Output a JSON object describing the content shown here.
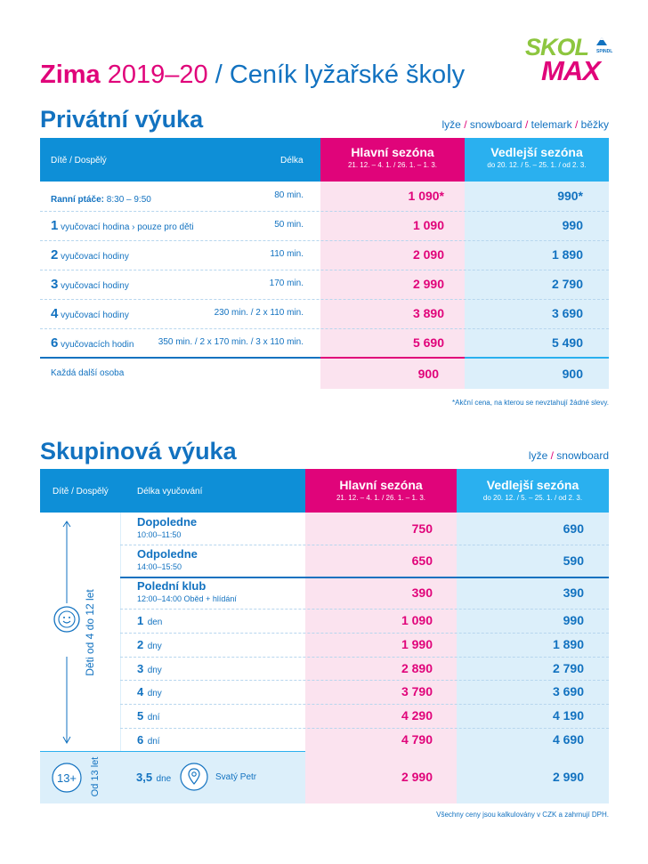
{
  "header": {
    "season_bold": "Zima",
    "season_years": "2019–20",
    "season_rest": "/ Ceník lyžařské školy"
  },
  "logo": {
    "top": "SKOL",
    "bottom": "MAX",
    "small": "SPINDL",
    "text": "SKOL MAX"
  },
  "colors": {
    "blue": "#1272c0",
    "magenta": "#e0047a",
    "cyan": "#2ab0ef",
    "green": "#8dc63f"
  },
  "private": {
    "title": "Privátní výuka",
    "tags": [
      "lyže",
      "snowboard",
      "telemark",
      "běžky"
    ],
    "head": {
      "who": "Dítě / Dospělý",
      "length": "Délka",
      "main": "Hlavní sezóna",
      "main_dates": "21. 12. – 4. 1. / 26. 1. – 1. 3.",
      "off": "Vedlejší sezóna",
      "off_dates": "do 20. 12. / 5. – 25. 1. / od 2. 3."
    },
    "rows": [
      {
        "num": "",
        "label_bold": "Ranní ptáče:",
        "label": " 8:30 – 9:50",
        "duration": "80 min.",
        "main": "1 090*",
        "off": "990*"
      },
      {
        "num": "1",
        "label_bold": "",
        "label": " vyučovací hodina › pouze pro děti",
        "duration": "50 min.",
        "main": "1 090",
        "off": "990"
      },
      {
        "num": "2",
        "label_bold": "",
        "label": " vyučovací hodiny",
        "duration": "110 min.",
        "main": "2 090",
        "off": "1 890"
      },
      {
        "num": "3",
        "label_bold": "",
        "label": " vyučovací hodiny",
        "duration": "170 min.",
        "main": "2 990",
        "off": "2 790"
      },
      {
        "num": "4",
        "label_bold": "",
        "label": " vyučovací hodiny",
        "duration": "230 min. / 2 x 110 min.",
        "main": "3 890",
        "off": "3 690"
      },
      {
        "num": "6",
        "label_bold": "",
        "label": " vyučovacích hodin",
        "duration": "350 min. / 2 x 170 min. / 3 x 110 min.",
        "main": "5 690",
        "off": "5 490"
      }
    ],
    "extra": {
      "label": "Každá další osoba",
      "main": "900",
      "off": "900"
    },
    "note": "*Akční cena, na kterou se nevztahují žádné slevy."
  },
  "group": {
    "title": "Skupinová výuka",
    "tags": [
      "lyže",
      "snowboard"
    ],
    "head": {
      "who": "Dítě / Dospělý",
      "length": "Délka vyučování",
      "main": "Hlavní sezóna",
      "main_dates": "21. 12. – 4. 1. / 26. 1. – 1. 3.",
      "off": "Vedlejší sezóna",
      "off_dates": "do 20. 12. / 5. – 25. 1. / od 2. 3."
    },
    "kids_label": "Děti od 4 do 12 let",
    "rows_named": [
      {
        "name": "Dopoledne",
        "time": "10:00–11:50",
        "main": "750",
        "off": "690"
      },
      {
        "name": "Odpoledne",
        "time": "14:00–15:50",
        "main": "650",
        "off": "590"
      },
      {
        "name": "Polední klub",
        "time": "12:00–14:00 Oběd + hlídání",
        "main": "390",
        "off": "390"
      }
    ],
    "rows_days": [
      {
        "num": "1",
        "unit": "den",
        "main": "1 090",
        "off": "990"
      },
      {
        "num": "2",
        "unit": "dny",
        "main": "1 990",
        "off": "1 890"
      },
      {
        "num": "3",
        "unit": "dny",
        "main": "2 890",
        "off": "2 790"
      },
      {
        "num": "4",
        "unit": "dny",
        "main": "3 790",
        "off": "3 690"
      },
      {
        "num": "5",
        "unit": "dní",
        "main": "4 290",
        "off": "4 190"
      },
      {
        "num": "6",
        "unit": "dní",
        "main": "4 790",
        "off": "4 690"
      }
    ],
    "adult": {
      "badge": "13+",
      "side": "Od 13 let",
      "num": "3,5",
      "unit": "dne",
      "place": "Svatý Petr",
      "main": "2 990",
      "off": "2 990"
    },
    "note": "Všechny ceny jsou kalkulovány v CZK a zahrnují DPH."
  }
}
